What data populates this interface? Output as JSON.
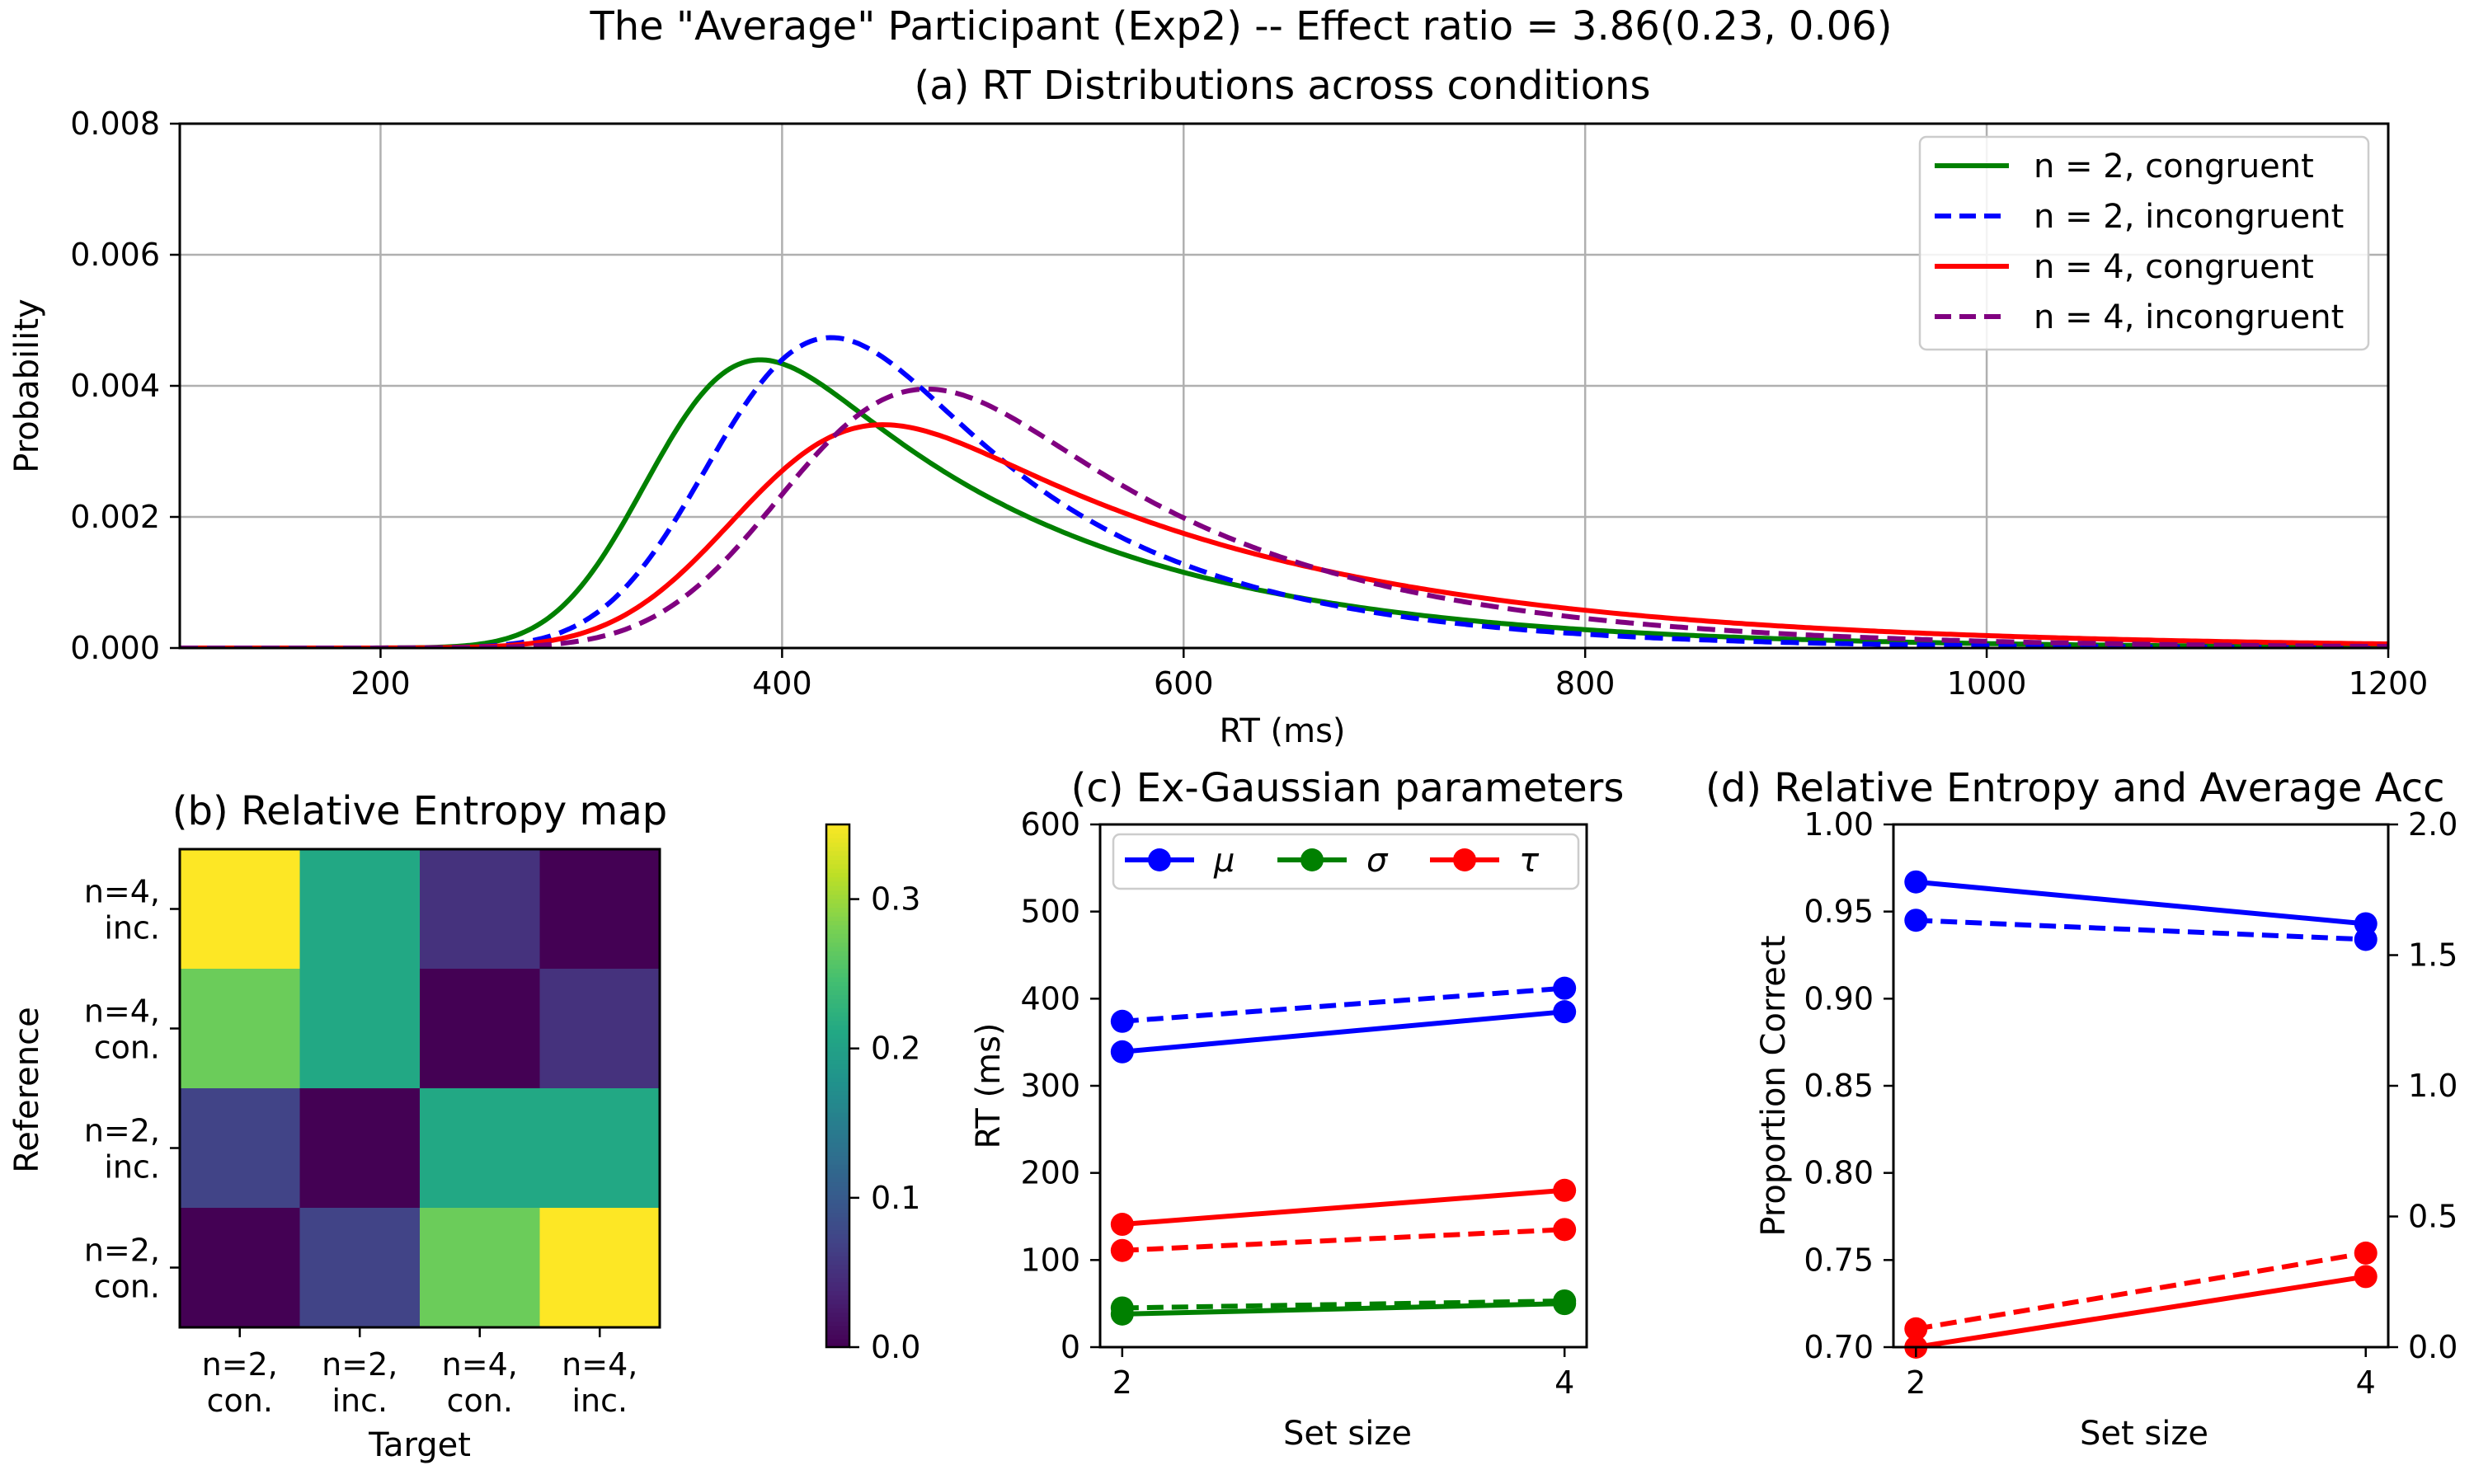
{
  "figure": {
    "suptitle": "The \"Average\" Participant (Exp2) -- Effect ratio = 3.86(0.23, 0.06)"
  },
  "chart_data": [
    {
      "id": "a",
      "type": "line",
      "title": "(a) RT Distributions across conditions",
      "xlabel": "RT (ms)",
      "ylabel": "Probability",
      "xlim": [
        100,
        1200
      ],
      "ylim": [
        0,
        0.008
      ],
      "xticks": [
        200,
        400,
        600,
        800,
        1000,
        1200
      ],
      "yticks": [
        0.0,
        0.002,
        0.004,
        0.006,
        0.008
      ],
      "ytick_labels": [
        "0.000",
        "0.002",
        "0.004",
        "0.006",
        "0.008"
      ],
      "grid": true,
      "legend_position": "top-right",
      "series": [
        {
          "name": "n = 2, congruent",
          "color": "#008000",
          "dash": "solid",
          "mu": 339,
          "sigma": 38,
          "tau": 141
        },
        {
          "name": "n = 2, incongruent",
          "color": "#0000ff",
          "dash": "dashed",
          "mu": 374,
          "sigma": 45,
          "tau": 111
        },
        {
          "name": "n = 4, congruent",
          "color": "#ff0000",
          "dash": "solid",
          "mu": 385,
          "sigma": 50,
          "tau": 180
        },
        {
          "name": "n = 4, incongruent",
          "color": "#800080",
          "dash": "dashed",
          "mu": 412,
          "sigma": 53,
          "tau": 135
        }
      ],
      "peaks": [
        {
          "series": "n = 2, congruent",
          "x": 387,
          "y": 0.00447
        },
        {
          "series": "n = 2, incongruent",
          "x": 428,
          "y": 0.00473
        },
        {
          "series": "n = 4, congruent",
          "x": 450,
          "y": 0.00343
        },
        {
          "series": "n = 4, incongruent",
          "x": 472,
          "y": 0.00396
        }
      ]
    },
    {
      "id": "b",
      "type": "heatmap",
      "title": "(b) Relative Entropy map",
      "xlabel": "Target",
      "ylabel": "Reference",
      "x_categories": [
        "n=2,\ncon.",
        "n=2,\ninc.",
        "n=4,\ncon.",
        "n=4,\ninc."
      ],
      "y_categories_top_to_bottom": [
        "n=4,\ninc.",
        "n=4,\ncon.",
        "n=2,\ninc.",
        "n=2,\ncon."
      ],
      "values_top_to_bottom": [
        [
          0.35,
          0.21,
          0.05,
          0.0
        ],
        [
          0.27,
          0.21,
          0.0,
          0.05
        ],
        [
          0.07,
          0.0,
          0.21,
          0.21
        ],
        [
          0.0,
          0.07,
          0.27,
          0.35
        ]
      ],
      "colormap": "viridis",
      "colorbar_range": [
        0,
        0.35
      ],
      "colorbar_ticks": [
        0.0,
        0.1,
        0.2,
        0.3
      ]
    },
    {
      "id": "c",
      "type": "line",
      "title": "(c) Ex-Gaussian parameters",
      "xlabel": "Set size",
      "ylabel": "RT (ms)",
      "x": [
        2,
        4
      ],
      "xlim": [
        1.9,
        4.1
      ],
      "ylim": [
        0,
        600
      ],
      "xticks": [
        2,
        4
      ],
      "yticks": [
        0,
        100,
        200,
        300,
        400,
        500,
        600
      ],
      "legend_position": "top",
      "legend": [
        {
          "name": "μ",
          "color": "#0000ff"
        },
        {
          "name": "σ",
          "color": "#008000"
        },
        {
          "name": "τ",
          "color": "#ff0000"
        }
      ],
      "series": [
        {
          "param": "μ",
          "condition": "congruent",
          "color": "#0000ff",
          "dash": "solid",
          "values": [
            339,
            385
          ]
        },
        {
          "param": "μ",
          "condition": "incongruent",
          "color": "#0000ff",
          "dash": "dashed",
          "values": [
            374,
            412
          ]
        },
        {
          "param": "σ",
          "condition": "congruent",
          "color": "#008000",
          "dash": "solid",
          "values": [
            38,
            50
          ]
        },
        {
          "param": "σ",
          "condition": "incongruent",
          "color": "#008000",
          "dash": "dashed",
          "values": [
            45,
            53
          ]
        },
        {
          "param": "τ",
          "condition": "congruent",
          "color": "#ff0000",
          "dash": "solid",
          "values": [
            141,
            180
          ]
        },
        {
          "param": "τ",
          "condition": "incongruent",
          "color": "#ff0000",
          "dash": "dashed",
          "values": [
            111,
            135
          ]
        }
      ]
    },
    {
      "id": "d",
      "type": "line",
      "title": "(d) Relative Entropy and Average Acc",
      "xlabel": "Set size",
      "ylabel": "Proportion Correct",
      "x": [
        2,
        4
      ],
      "xlim": [
        1.9,
        4.1
      ],
      "ylim": [
        0.7,
        1.0
      ],
      "ylim_right": [
        0.0,
        2.0
      ],
      "xticks": [
        2,
        4
      ],
      "yticks": [
        0.7,
        0.75,
        0.8,
        0.85,
        0.9,
        0.95,
        1.0
      ],
      "ytick_labels": [
        "0.70",
        "0.75",
        "0.80",
        "0.85",
        "0.90",
        "0.95",
        "1.00"
      ],
      "yticks_right": [
        0.0,
        0.5,
        1.0,
        1.5,
        2.0
      ],
      "series": [
        {
          "axis": "left",
          "color": "#0000ff",
          "dash": "solid",
          "values": [
            0.967,
            0.943
          ]
        },
        {
          "axis": "left",
          "color": "#0000ff",
          "dash": "dashed",
          "values": [
            0.945,
            0.934
          ]
        },
        {
          "axis": "right",
          "color": "#ff0000",
          "dash": "solid",
          "values": [
            0.0,
            0.27
          ]
        },
        {
          "axis": "right",
          "color": "#ff0000",
          "dash": "dashed",
          "values": [
            0.07,
            0.36
          ]
        }
      ]
    }
  ]
}
